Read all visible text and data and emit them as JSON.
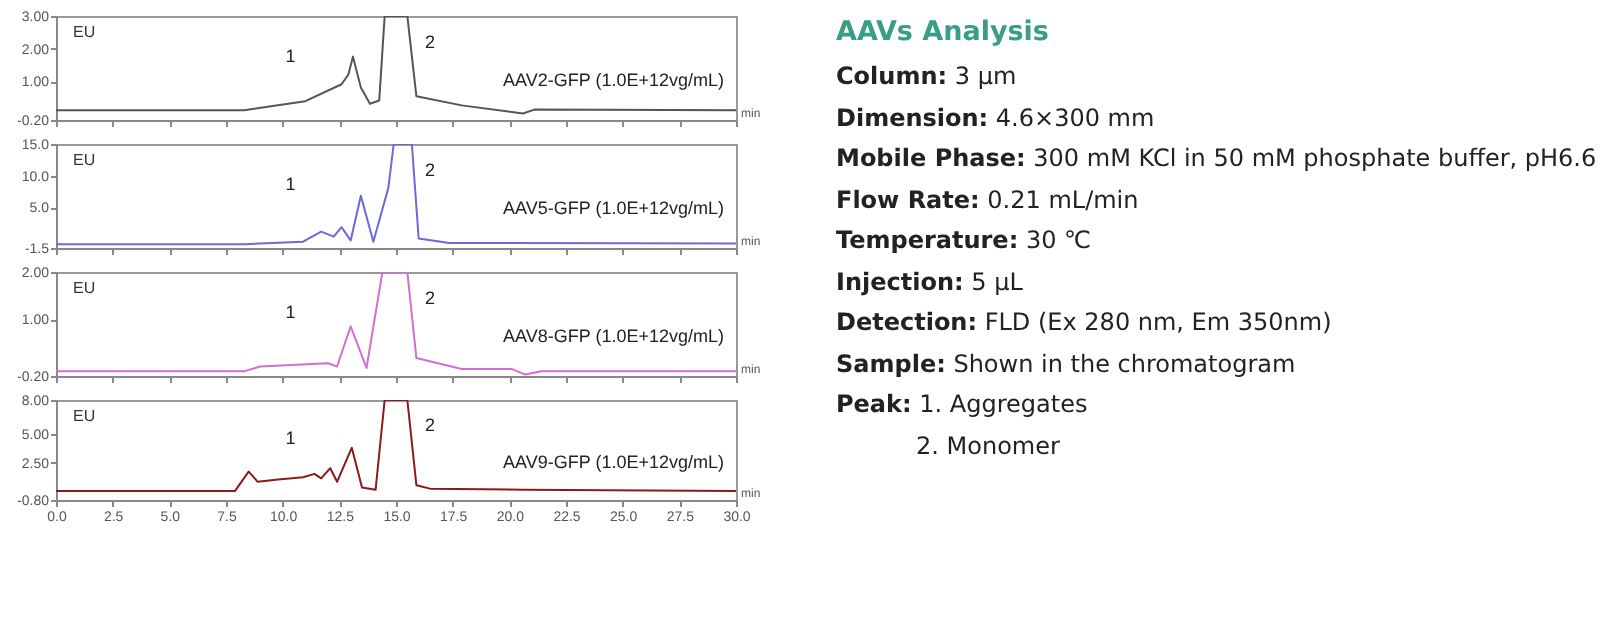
{
  "chart_data": [
    {
      "type": "line",
      "xlim": [
        0,
        30
      ],
      "xticks": [
        0,
        2.5,
        5,
        7.5,
        10,
        12.5,
        15,
        17.5,
        20,
        22.5,
        25,
        27.5,
        30
      ],
      "ylim": [
        -0.2,
        3
      ],
      "yticks": [
        {
          "value": -0.2,
          "label": "-0.20"
        },
        {
          "value": 1,
          "label": "1.00"
        },
        {
          "value": 2,
          "label": "2.00"
        },
        {
          "value": 3,
          "label": "3.00"
        }
      ],
      "tick_labels": "y",
      "xlabel": "min",
      "ylabel": "EU",
      "x": [
        0,
        5,
        8.3,
        11,
        12.6,
        12.9,
        13.1,
        13.45,
        13.85,
        14.26,
        14.5,
        15.5,
        15.9,
        17.9,
        20.6,
        21.1,
        30
      ],
      "series": [
        {
          "color": "#555555",
          "values": [
            0.1,
            0.1,
            0.1,
            0.38,
            0.9,
            1.2,
            1.75,
            0.8,
            0.3,
            0.4,
            3,
            3,
            0.53,
            0.25,
            0,
            0.12,
            0.1
          ]
        }
      ],
      "annotations": [
        "1",
        "2",
        "AAV2-GFP (1.0E+12vg/mL)"
      ]
    },
    {
      "type": "line",
      "xlim": [
        0,
        30
      ],
      "xticks": [
        0,
        2.5,
        5,
        7.5,
        10,
        12.5,
        15,
        17.5,
        20,
        22.5,
        25,
        27.5,
        30
      ],
      "ylim": [
        -1.5,
        15
      ],
      "yticks": [
        -1.5,
        {
          "value": 5,
          "label": "5.0"
        },
        {
          "value": 10,
          "label": "10.0"
        },
        {
          "value": 15,
          "label": "15.0"
        }
      ],
      "tick_labels": "y",
      "xlabel": "min",
      "ylabel": "EU",
      "x": [
        0,
        5,
        8.34,
        10.9,
        11.7,
        12.25,
        12.6,
        13,
        13.45,
        14,
        14.66,
        14.9,
        15.7,
        16,
        17.35,
        30
      ],
      "series": [
        {
          "color": "#6a6ad8",
          "values": [
            -0.9,
            -0.9,
            -0.9,
            -0.5,
            1.1,
            0.3,
            1.8,
            -0.3,
            6.8,
            -0.5,
            8,
            15,
            15,
            0,
            -0.7,
            -0.8
          ]
        }
      ],
      "annotations": [
        "1",
        "2",
        "AAV5-GFP (1.0E+12vg/mL)"
      ]
    },
    {
      "type": "line",
      "xlim": [
        0,
        30
      ],
      "xticks": [
        0,
        2.5,
        5,
        7.5,
        10,
        12.5,
        15,
        17.5,
        20,
        22.5,
        25,
        27.5,
        30
      ],
      "ylim": [
        -0.2,
        2
      ],
      "yticks": [
        {
          "value": -0.2,
          "label": "-0.20"
        },
        {
          "value": 1,
          "label": "1.00"
        },
        {
          "value": 2,
          "label": "2.00"
        }
      ],
      "tick_labels": "y",
      "xlabel": "min",
      "ylabel": "EU",
      "x": [
        0,
        5,
        8.3,
        9,
        12,
        12.4,
        13,
        13.7,
        14.4,
        15.5,
        15.9,
        17.9,
        20.1,
        20.7,
        21.4,
        30
      ],
      "series": [
        {
          "color": "#d070d0",
          "values": [
            -0.1,
            -0.1,
            -0.1,
            0,
            0.07,
            0,
            0.85,
            -0.03,
            2,
            2,
            0.18,
            -0.05,
            -0.05,
            -0.17,
            -0.1,
            -0.1
          ]
        }
      ],
      "annotations": [
        "1",
        "2",
        "AAV8-GFP (1.0E+12vg/mL)"
      ]
    },
    {
      "type": "line",
      "xlim": [
        0,
        30
      ],
      "xticks": [
        {
          "value": 0,
          "label": "0.0"
        },
        2.5,
        {
          "value": 5,
          "label": "5.0"
        },
        7.5,
        {
          "value": 10,
          "label": "10.0"
        },
        12.5,
        {
          "value": 15,
          "label": "15.0"
        },
        17.5,
        {
          "value": 20,
          "label": "20.0"
        },
        22.5,
        {
          "value": 25,
          "label": "25.0"
        },
        27.5,
        {
          "value": 30,
          "label": "30.0"
        }
      ],
      "ylim": [
        -0.8,
        8
      ],
      "yticks": [
        {
          "value": -0.8,
          "label": "-0.80"
        },
        {
          "value": 2.5,
          "label": "2.50"
        },
        {
          "value": 5,
          "label": "5.00"
        },
        {
          "value": 8,
          "label": "8.00"
        }
      ],
      "xlabel": "min",
      "ylabel": "EU",
      "x": [
        0,
        5,
        7.9,
        8.5,
        8.9,
        9.8,
        10.9,
        11.4,
        11.7,
        12.1,
        12.4,
        13.05,
        13.5,
        14.1,
        14.5,
        15.5,
        15.9,
        16.5,
        20.6,
        30
      ],
      "series": [
        {
          "color": "#8b1a1a",
          "values": [
            0,
            0,
            0,
            1.7,
            0.8,
            1,
            1.2,
            1.5,
            1.1,
            2,
            0.8,
            3.8,
            0.3,
            0.1,
            8,
            8,
            0.5,
            0.2,
            0.1,
            0
          ]
        }
      ],
      "annotations": [
        "1",
        "2",
        "AAV9-GFP (1.0E+12vg/mL)"
      ]
    },
    {
      "type": "other",
      "title": "AAVs Analysis",
      "annotations": [
        "Column: 3 µm",
        "Dimension: 4.6×300 mm",
        "Mobile Phase: 300 mM KCl in 50 mM phosphate buffer, pH6.6",
        "Flow Rate: 0.21 mL/min",
        "Temperature: 30 ℃",
        "Injection: 5 µL",
        "Detection: FLD (Ex 280 nm, Em 350nm)",
        "Sample: Shown in the chromatogram",
        "Peak: 1. Aggregates",
        "2. Monomer"
      ]
    }
  ]
}
